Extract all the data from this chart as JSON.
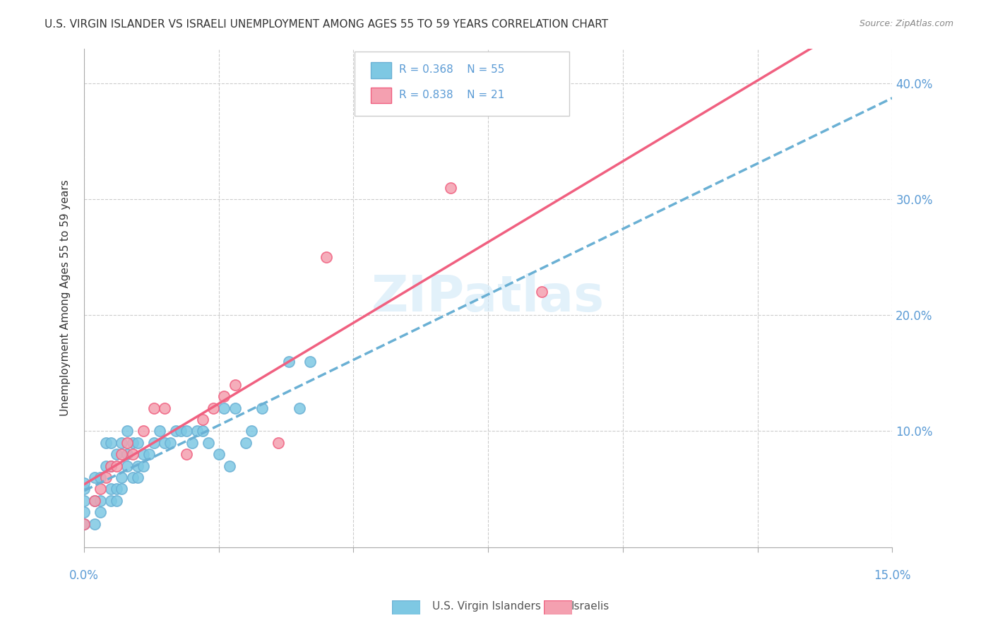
{
  "title": "U.S. VIRGIN ISLANDER VS ISRAELI UNEMPLOYMENT AMONG AGES 55 TO 59 YEARS CORRELATION CHART",
  "source": "Source: ZipAtlas.com",
  "ylabel": "Unemployment Among Ages 55 to 59 years",
  "xlim": [
    0.0,
    0.15
  ],
  "ylim": [
    0.0,
    0.43
  ],
  "xtick_positions": [
    0.0,
    0.025,
    0.05,
    0.075,
    0.1,
    0.125,
    0.15
  ],
  "ytick_vals_right": [
    0.1,
    0.2,
    0.3,
    0.4
  ],
  "legend_r1": "R = 0.368",
  "legend_n1": "N = 55",
  "legend_r2": "R = 0.838",
  "legend_n2": "N = 21",
  "color_vi": "#7ec8e3",
  "color_il": "#f4a0b0",
  "color_vi_line": "#6ab0d4",
  "color_il_line": "#f06080",
  "color_text_blue": "#5b9bd5",
  "watermark": "ZIPatlas",
  "vi_x": [
    0.0,
    0.0,
    0.0,
    0.0,
    0.0,
    0.002,
    0.002,
    0.002,
    0.003,
    0.003,
    0.003,
    0.004,
    0.004,
    0.005,
    0.005,
    0.005,
    0.005,
    0.006,
    0.006,
    0.006,
    0.007,
    0.007,
    0.007,
    0.008,
    0.008,
    0.008,
    0.009,
    0.009,
    0.01,
    0.01,
    0.01,
    0.011,
    0.011,
    0.012,
    0.013,
    0.014,
    0.015,
    0.016,
    0.017,
    0.018,
    0.019,
    0.02,
    0.021,
    0.022,
    0.023,
    0.025,
    0.026,
    0.027,
    0.028,
    0.03,
    0.031,
    0.033,
    0.038,
    0.04,
    0.042
  ],
  "vi_y": [
    0.02,
    0.03,
    0.04,
    0.05,
    0.055,
    0.02,
    0.04,
    0.06,
    0.03,
    0.04,
    0.06,
    0.07,
    0.09,
    0.04,
    0.05,
    0.07,
    0.09,
    0.04,
    0.05,
    0.08,
    0.05,
    0.06,
    0.09,
    0.07,
    0.08,
    0.1,
    0.06,
    0.09,
    0.06,
    0.07,
    0.09,
    0.07,
    0.08,
    0.08,
    0.09,
    0.1,
    0.09,
    0.09,
    0.1,
    0.1,
    0.1,
    0.09,
    0.1,
    0.1,
    0.09,
    0.08,
    0.12,
    0.07,
    0.12,
    0.09,
    0.1,
    0.12,
    0.16,
    0.12,
    0.16
  ],
  "il_x": [
    0.0,
    0.002,
    0.003,
    0.004,
    0.005,
    0.006,
    0.007,
    0.008,
    0.009,
    0.011,
    0.013,
    0.015,
    0.019,
    0.022,
    0.024,
    0.026,
    0.028,
    0.036,
    0.045,
    0.068,
    0.085
  ],
  "il_y": [
    0.02,
    0.04,
    0.05,
    0.06,
    0.07,
    0.07,
    0.08,
    0.09,
    0.08,
    0.1,
    0.12,
    0.12,
    0.08,
    0.11,
    0.12,
    0.13,
    0.14,
    0.09,
    0.25,
    0.31,
    0.22
  ]
}
